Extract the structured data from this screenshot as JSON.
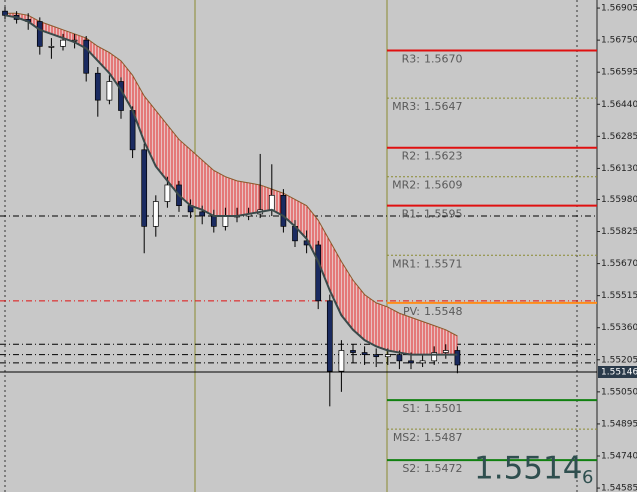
{
  "chart_data": {
    "type": "candlestick",
    "ylim": [
      1.54566,
      1.56944
    ],
    "yticks": [
      1.56905,
      {
        "value": 1.5675,
        "label": "1.56750"
      },
      1.56595,
      {
        "value": 1.5644,
        "label": "1.56440"
      },
      1.56285,
      {
        "value": 1.5613,
        "label": "1.56130"
      },
      {
        "value": 1.5598,
        "label": "1.55980"
      },
      1.55825,
      {
        "value": 1.5567,
        "label": "1.55670"
      },
      1.55515,
      {
        "value": 1.5536,
        "label": "1.55360"
      },
      1.55205,
      {
        "value": 1.5505,
        "label": "1.55050"
      },
      1.54895,
      {
        "value": 1.5474,
        "label": "1.54740"
      },
      1.54585
    ],
    "open": [
      1.5689,
      1.5687,
      1.5685,
      1.5684,
      1.5672,
      1.5672,
      1.5675,
      1.5675,
      1.5659,
      1.5646,
      1.5655,
      1.5641,
      1.5622,
      1.5585,
      1.5597,
      1.5605,
      1.5595,
      1.5592,
      1.559,
      1.5585,
      1.559,
      1.559,
      1.5591,
      1.5593,
      1.56,
      1.5585,
      1.5578,
      1.5576,
      1.5549,
      1.5515,
      1.5525,
      1.5524,
      1.5523,
      1.5522,
      1.5523,
      1.552,
      1.5519,
      1.552,
      1.5524,
      1.5525
    ],
    "high": [
      1.5691,
      1.5689,
      1.5688,
      1.5686,
      1.5676,
      1.5678,
      1.5678,
      1.5677,
      1.5662,
      1.5658,
      1.5657,
      1.5643,
      1.5625,
      1.56,
      1.5609,
      1.5607,
      1.5598,
      1.5595,
      1.5593,
      1.5594,
      1.5594,
      1.5594,
      1.562,
      1.5615,
      1.5603,
      1.5588,
      1.5583,
      1.5578,
      1.5552,
      1.553,
      1.5528,
      1.5527,
      1.5526,
      1.5526,
      1.5525,
      1.5524,
      1.5523,
      1.5527,
      1.5528,
      1.5527
    ],
    "low": [
      1.5685,
      1.5683,
      1.568,
      1.5668,
      1.5666,
      1.567,
      1.5671,
      1.5655,
      1.5638,
      1.5644,
      1.5637,
      1.5618,
      1.5572,
      1.558,
      1.5594,
      1.5592,
      1.5589,
      1.5586,
      1.5582,
      1.5583,
      1.5587,
      1.5588,
      1.5589,
      1.559,
      1.5582,
      1.5575,
      1.5572,
      1.5545,
      1.5498,
      1.5505,
      1.5519,
      1.5518,
      1.5517,
      1.5518,
      1.5516,
      1.5516,
      1.5517,
      1.5518,
      1.5521,
      1.5514
    ],
    "close": [
      1.5687,
      1.5685,
      1.5684,
      1.5672,
      1.5672,
      1.5675,
      1.5675,
      1.5659,
      1.5646,
      1.5655,
      1.5641,
      1.5622,
      1.5585,
      1.5597,
      1.5605,
      1.5595,
      1.5592,
      1.559,
      1.5585,
      1.559,
      1.559,
      1.5591,
      1.5593,
      1.56,
      1.5585,
      1.5578,
      1.5576,
      1.5549,
      1.5515,
      1.5525,
      1.5524,
      1.5523,
      1.5522,
      1.5523,
      1.552,
      1.5519,
      1.552,
      1.5524,
      1.5525,
      1.5518
    ],
    "ma": [
      1.5687,
      1.5686,
      1.5684,
      1.568,
      1.5678,
      1.5676,
      1.5674,
      1.5671,
      1.5665,
      1.5659,
      1.5651,
      1.5641,
      1.5626,
      1.5614,
      1.5607,
      1.56,
      1.5595,
      1.5593,
      1.559,
      1.559,
      1.559,
      1.5591,
      1.5592,
      1.5593,
      1.559,
      1.5585,
      1.5579,
      1.5568,
      1.5554,
      1.5542,
      1.5535,
      1.553,
      1.5527,
      1.5525,
      1.5524,
      1.5523,
      1.5523,
      1.5523,
      1.5523,
      1.5523
    ],
    "ribbon": [
      1.5688,
      1.5688,
      1.5687,
      1.5684,
      1.5682,
      1.568,
      1.5678,
      1.5676,
      1.5672,
      1.5669,
      1.5665,
      1.5658,
      1.5648,
      1.5641,
      1.5634,
      1.5627,
      1.5622,
      1.5617,
      1.5612,
      1.5609,
      1.5607,
      1.5606,
      1.5605,
      1.5603,
      1.5601,
      1.5598,
      1.5595,
      1.5588,
      1.5578,
      1.5568,
      1.5559,
      1.5552,
      1.5548,
      1.5546,
      1.5543,
      1.5541,
      1.5539,
      1.5537,
      1.5535,
      1.5532
    ],
    "pivots": [
      {
        "name": "R3:",
        "value": 1.567,
        "value_label": "1.5670",
        "color": "#e01010",
        "style": "solid"
      },
      {
        "name": "MR3:",
        "value": 1.5647,
        "value_label": "1.5647",
        "color": "#8a8a30",
        "style": "dotted"
      },
      {
        "name": "R2:",
        "value": 1.5623,
        "value_label": "1.5623",
        "color": "#e01010",
        "style": "solid"
      },
      {
        "name": "MR2:",
        "value": 1.5609,
        "value_label": "1.5609",
        "color": "#8a8a30",
        "style": "dotted"
      },
      {
        "name": "R1:",
        "value": 1.5595,
        "value_label": "1.5595",
        "color": "#e01010",
        "style": "solid"
      },
      {
        "name": "MR1:",
        "value": 1.5571,
        "value_label": "1.5571",
        "color": "#8a8a30",
        "style": "dotted"
      },
      {
        "name": "PV:",
        "value": 1.5548,
        "value_label": "1.5548",
        "color": "#ff8c1a",
        "style": "solid"
      },
      {
        "name": "S1:",
        "value": 1.5501,
        "value_label": "1.5501",
        "color": "#108010",
        "style": "solid"
      },
      {
        "name": "MS2:",
        "value": 1.5487,
        "value_label": "1.5487",
        "color": "#8a8a30",
        "style": "dotted"
      },
      {
        "name": "S2:",
        "value": 1.5472,
        "value_label": "1.5472",
        "color": "#108010",
        "style": "solid"
      }
    ],
    "levels": [
      {
        "value": 1.559,
        "color": "#000000"
      },
      {
        "value": 1.5549,
        "color": "#e01010"
      },
      {
        "value": 1.5528,
        "color": "#000000"
      },
      {
        "value": 1.5523,
        "color": "#000000"
      },
      {
        "value": 1.5519,
        "color": "#000000"
      }
    ],
    "current_price": 1.55146,
    "big_price": "1.5514",
    "big_price_last": "6"
  }
}
